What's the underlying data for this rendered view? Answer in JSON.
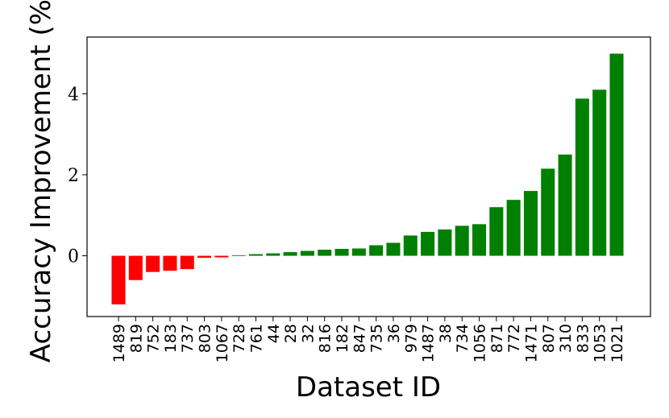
{
  "chart_data": {
    "type": "bar",
    "title": "",
    "xlabel": "Dataset ID",
    "ylabel": "Accuracy Improvement (%)",
    "ylim": [
      -1.5,
      5.4
    ],
    "yticks": [
      0,
      2,
      4
    ],
    "grid": false,
    "categories": [
      "1489",
      "819",
      "752",
      "183",
      "737",
      "803",
      "1067",
      "728",
      "761",
      "44",
      "28",
      "32",
      "816",
      "182",
      "847",
      "735",
      "36",
      "979",
      "1487",
      "38",
      "734",
      "1056",
      "871",
      "772",
      "1471",
      "807",
      "310",
      "833",
      "1053",
      "1021"
    ],
    "values": [
      -1.2,
      -0.6,
      -0.4,
      -0.37,
      -0.33,
      -0.05,
      -0.04,
      0.01,
      0.04,
      0.06,
      0.09,
      0.12,
      0.15,
      0.17,
      0.18,
      0.26,
      0.32,
      0.5,
      0.59,
      0.65,
      0.74,
      0.78,
      1.2,
      1.38,
      1.6,
      2.15,
      2.5,
      3.88,
      4.1,
      4.99
    ],
    "colors": {
      "negative": "#ff0000",
      "positive": "#008000"
    }
  }
}
